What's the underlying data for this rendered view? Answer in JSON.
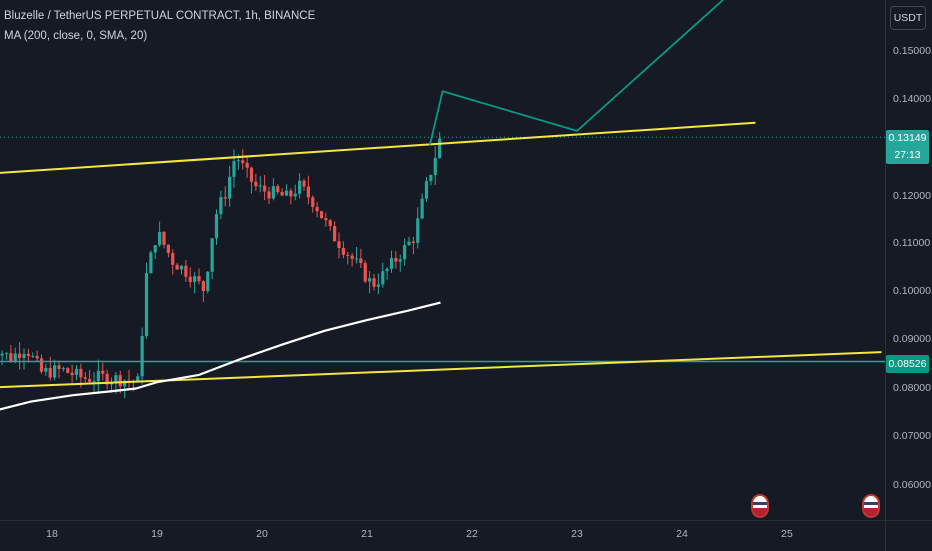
{
  "header": {
    "title": "Bluzelle / TetherUS PERPETUAL CONTRACT, 1h, BINANCE",
    "indicator": "MA (200, close, 0, SMA, 20)"
  },
  "price_axis": {
    "currency": "USDT",
    "ticks": [
      "0.15000",
      "0.14000",
      "0.12000",
      "0.11000",
      "0.10000",
      "0.09000",
      "0.08000",
      "0.07000",
      "0.06000"
    ]
  },
  "badges": {
    "current_price": "0.13149",
    "countdown": "27:13",
    "support_price": "0.08526"
  },
  "colors": {
    "background": "#161a25",
    "up_candle": "#26a69a",
    "down_candle": "#ef5350",
    "ma_line": "#ffffff",
    "trendline": "#f5e642",
    "support_line": "#26a69a",
    "projection": "#089981"
  },
  "chart_data": {
    "type": "candlestick",
    "title": "Bluzelle / TetherUS PERPETUAL CONTRACT, 1h, BINANCE",
    "x_ticks": [
      "18",
      "19",
      "20",
      "21",
      "22",
      "23",
      "24",
      "25"
    ],
    "y_ticks": [
      0.15,
      0.14,
      0.12,
      0.11,
      0.1,
      0.09,
      0.08,
      0.07,
      0.06
    ],
    "ylim": [
      0.0555,
      0.1575
    ],
    "grid": false,
    "current_price": 0.13149,
    "close_path": [
      [
        17.4,
        0.089
      ],
      [
        17.6,
        0.086
      ],
      [
        17.75,
        0.0882
      ],
      [
        17.9,
        0.083
      ],
      [
        18.1,
        0.0835
      ],
      [
        18.3,
        0.0818
      ],
      [
        18.5,
        0.082
      ],
      [
        18.7,
        0.0815
      ],
      [
        18.82,
        0.081
      ],
      [
        18.9,
        0.103
      ],
      [
        19.0,
        0.112
      ],
      [
        19.15,
        0.106
      ],
      [
        19.3,
        0.1035
      ],
      [
        19.45,
        0.1
      ],
      [
        19.55,
        0.115
      ],
      [
        19.65,
        0.12
      ],
      [
        19.75,
        0.128
      ],
      [
        19.85,
        0.124
      ],
      [
        19.95,
        0.121
      ],
      [
        20.1,
        0.12
      ],
      [
        20.25,
        0.119
      ],
      [
        20.35,
        0.1215
      ],
      [
        20.5,
        0.118
      ],
      [
        20.65,
        0.112
      ],
      [
        20.8,
        0.108
      ],
      [
        20.95,
        0.104
      ],
      [
        21.05,
        0.101
      ],
      [
        21.15,
        0.103
      ],
      [
        21.3,
        0.107
      ],
      [
        21.45,
        0.111
      ],
      [
        21.55,
        0.12
      ],
      [
        21.7,
        0.1315
      ]
    ],
    "ma_200": [
      [
        17.4,
        0.0748
      ],
      [
        17.8,
        0.077
      ],
      [
        18.2,
        0.0783
      ],
      [
        18.6,
        0.0792
      ],
      [
        18.8,
        0.0797
      ],
      [
        19.0,
        0.081
      ],
      [
        19.4,
        0.0825
      ],
      [
        19.8,
        0.0858
      ],
      [
        20.2,
        0.0888
      ],
      [
        20.6,
        0.0916
      ],
      [
        21.0,
        0.0938
      ],
      [
        21.4,
        0.0958
      ],
      [
        21.7,
        0.0974
      ]
    ],
    "trendline_upper": [
      [
        17.4,
        0.124
      ],
      [
        24.7,
        0.1345
      ]
    ],
    "trendline_lower": [
      [
        17.4,
        0.0799
      ],
      [
        25.9,
        0.0872
      ]
    ],
    "support_level": 0.08526,
    "projection_path": [
      [
        21.6,
        0.13
      ],
      [
        21.72,
        0.141
      ],
      [
        23.0,
        0.1328
      ],
      [
        24.4,
        0.16
      ]
    ]
  }
}
